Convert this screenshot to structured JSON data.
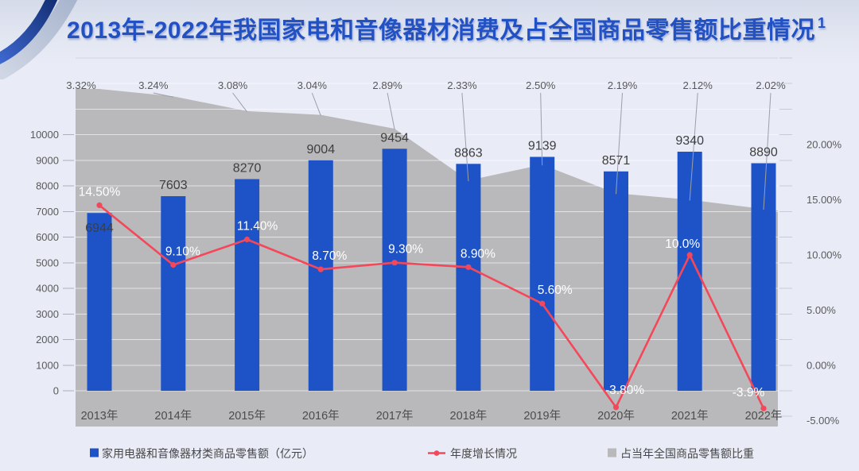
{
  "page": {
    "background": "#e9ecf7"
  },
  "title": {
    "text": "2013年-2022年我国家电和音像器材消费及占全国商品零售额比重情况",
    "superscript": "1",
    "color": "#2251c4"
  },
  "chart_data": {
    "type": "combo",
    "categories": [
      "2013年",
      "2014年",
      "2015年",
      "2016年",
      "2017年",
      "2018年",
      "2019年",
      "2020年",
      "2021年",
      "2022年"
    ],
    "series": [
      {
        "name": "家用电器和音像器材类商品零售额（亿元）",
        "type": "bar",
        "axis": "left",
        "color": "#1e53c8",
        "values": [
          6944,
          7603,
          8270,
          9004,
          9454,
          8863,
          9139,
          8571,
          9340,
          8890
        ],
        "labels": [
          "6944",
          "7603",
          "8270",
          "9004",
          "9454",
          "8863",
          "9139",
          "8571",
          "9340",
          "8890"
        ]
      },
      {
        "name": "年度增长情况",
        "type": "line",
        "axis": "right",
        "color": "#f4485a",
        "values": [
          14.5,
          9.1,
          11.4,
          8.7,
          9.3,
          8.9,
          5.6,
          -3.8,
          10.0,
          -3.9
        ],
        "labels": [
          "14.50%",
          "9.10%",
          "11.40%",
          "8.70%",
          "9.30%",
          "8.90%",
          "5.60%",
          "-3.80%",
          "10.0%",
          "-3.9%"
        ]
      },
      {
        "name": "占当年全国商品零售额比重",
        "type": "area",
        "axis": "none",
        "color": "#b9b9bb",
        "values": [
          3.32,
          3.24,
          3.08,
          3.04,
          2.89,
          2.33,
          2.5,
          2.19,
          2.12,
          2.02
        ],
        "labels": [
          "3.32%",
          "3.24%",
          "3.08%",
          "3.04%",
          "2.89%",
          "2.33%",
          "2.50%",
          "2.19%",
          "2.12%",
          "2.02%"
        ]
      }
    ],
    "left_axis": {
      "min": 0,
      "max": 10000,
      "step": 1000,
      "tick_labels": [
        "0",
        "1000",
        "2000",
        "3000",
        "4000",
        "5000",
        "6000",
        "7000",
        "8000",
        "9000",
        "10000"
      ]
    },
    "right_axis": {
      "values": [
        20,
        15,
        10,
        5,
        0,
        -5
      ],
      "tick_labels": [
        "20.00%",
        "15.00%",
        "10.00%",
        "5.00%",
        "0.00%",
        "-5.00%"
      ]
    },
    "legend": {
      "position": "bottom"
    },
    "grid": true
  }
}
